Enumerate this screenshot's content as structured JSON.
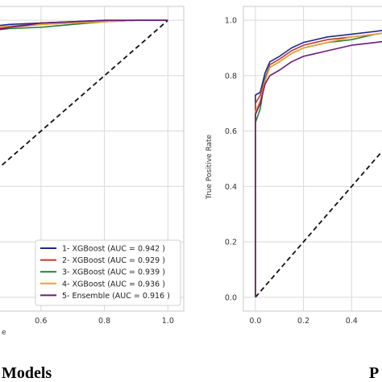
{
  "captions": {
    "left": "Models",
    "right": "P"
  },
  "chart_data": [
    {
      "type": "line",
      "xlabel": "e",
      "ylabel": "",
      "xlim": [
        0.42,
        1.05
      ],
      "ylim": [
        -0.05,
        1.05
      ],
      "x_ticks": [
        "0.6",
        "0.8",
        "1.0"
      ],
      "x_tick_values": [
        0.6,
        0.8,
        1.0
      ],
      "grid": true,
      "legend_position": "lower-right",
      "series": [
        {
          "name": "1- XGBoost (AUC = 0.942 )",
          "color": "#1f2a8c",
          "x": [
            0.42,
            0.5,
            0.6,
            0.7,
            0.8,
            0.9,
            1.0
          ],
          "y": [
            0.975,
            0.985,
            0.99,
            0.995,
            1.0,
            1.0,
            1.0
          ]
        },
        {
          "name": "2- XGBoost (AUC = 0.929 )",
          "color": "#c0392b",
          "x": [
            0.42,
            0.5,
            0.6,
            0.7,
            0.8,
            0.9,
            1.0
          ],
          "y": [
            0.965,
            0.975,
            0.985,
            0.99,
            0.995,
            1.0,
            1.0
          ]
        },
        {
          "name": "3- XGBoost (AUC = 0.939 )",
          "color": "#2e7d32",
          "x": [
            0.42,
            0.5,
            0.6,
            0.7,
            0.8,
            0.9,
            1.0
          ],
          "y": [
            0.96,
            0.97,
            0.975,
            0.985,
            0.995,
            1.0,
            1.0
          ]
        },
        {
          "name": "4- XGBoost (AUC = 0.936 )",
          "color": "#e6a23c",
          "x": [
            0.42,
            0.5,
            0.6,
            0.7,
            0.8,
            0.9,
            1.0
          ],
          "y": [
            0.97,
            0.98,
            0.985,
            0.99,
            0.995,
            1.0,
            1.0
          ]
        },
        {
          "name": "5- Ensemble (AUC = 0.916 )",
          "color": "#6a1b7a",
          "x": [
            0.42,
            0.5,
            0.6,
            0.7,
            0.8,
            0.9,
            1.0
          ],
          "y": [
            0.955,
            0.975,
            0.99,
            0.995,
            1.0,
            1.0,
            1.0
          ]
        }
      ],
      "reference_line": {
        "x": [
          0.42,
          1.0
        ],
        "y": [
          0.42,
          1.0
        ],
        "style": "dashed"
      }
    },
    {
      "type": "line",
      "xlabel": "",
      "ylabel": "True Positive Rate",
      "xlim": [
        -0.05,
        0.58
      ],
      "ylim": [
        -0.05,
        1.05
      ],
      "x_ticks": [
        "0.0",
        "0.2",
        "0.4"
      ],
      "x_tick_values": [
        0.0,
        0.2,
        0.4
      ],
      "y_ticks": [
        "0.0",
        "0.2",
        "0.4",
        "0.6",
        "0.8",
        "1.0"
      ],
      "y_tick_values": [
        0.0,
        0.2,
        0.4,
        0.6,
        0.8,
        1.0
      ],
      "grid": true,
      "series": [
        {
          "name": "",
          "color": "#1f2a8c",
          "x": [
            0.0,
            0.0,
            0.02,
            0.04,
            0.06,
            0.1,
            0.15,
            0.2,
            0.3,
            0.4,
            0.5,
            0.58
          ],
          "y": [
            0.0,
            0.73,
            0.74,
            0.81,
            0.85,
            0.87,
            0.9,
            0.92,
            0.94,
            0.95,
            0.96,
            0.97
          ]
        },
        {
          "name": "",
          "color": "#c0392b",
          "x": [
            0.0,
            0.0,
            0.02,
            0.04,
            0.06,
            0.1,
            0.15,
            0.2,
            0.3,
            0.4,
            0.5,
            0.58
          ],
          "y": [
            0.0,
            0.7,
            0.73,
            0.79,
            0.84,
            0.86,
            0.89,
            0.91,
            0.93,
            0.94,
            0.95,
            0.96
          ]
        },
        {
          "name": "",
          "color": "#2e7d32",
          "x": [
            0.0,
            0.0,
            0.02,
            0.04,
            0.06,
            0.1,
            0.15,
            0.2,
            0.3,
            0.4,
            0.5,
            0.58
          ],
          "y": [
            0.0,
            0.63,
            0.68,
            0.79,
            0.83,
            0.85,
            0.88,
            0.9,
            0.92,
            0.93,
            0.95,
            0.96
          ]
        },
        {
          "name": "",
          "color": "#e6a23c",
          "x": [
            0.0,
            0.0,
            0.02,
            0.04,
            0.06,
            0.1,
            0.15,
            0.2,
            0.3,
            0.4,
            0.5,
            0.58
          ],
          "y": [
            0.0,
            0.67,
            0.71,
            0.78,
            0.83,
            0.85,
            0.88,
            0.9,
            0.92,
            0.94,
            0.95,
            0.96
          ]
        },
        {
          "name": "",
          "color": "#6a1b7a",
          "x": [
            0.0,
            0.0,
            0.02,
            0.04,
            0.06,
            0.1,
            0.15,
            0.2,
            0.3,
            0.4,
            0.5,
            0.58
          ],
          "y": [
            0.0,
            0.66,
            0.7,
            0.77,
            0.8,
            0.82,
            0.85,
            0.87,
            0.89,
            0.91,
            0.92,
            0.93
          ]
        }
      ],
      "reference_line": {
        "x": [
          0.0,
          0.58
        ],
        "y": [
          0.0,
          0.58
        ],
        "style": "dashed"
      }
    }
  ]
}
